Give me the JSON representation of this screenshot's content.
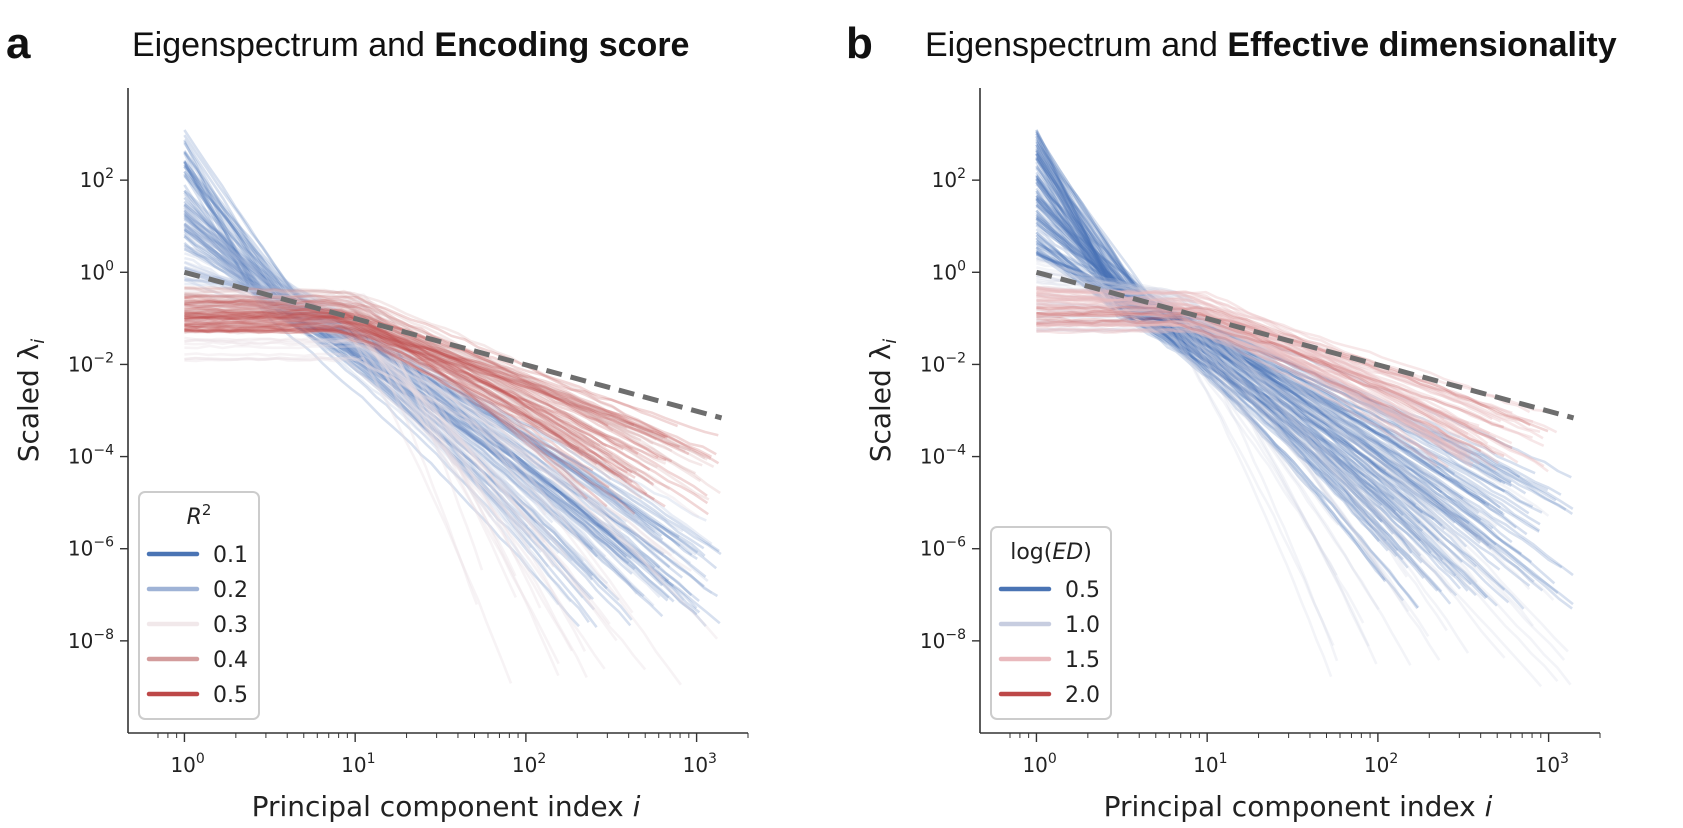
{
  "chart_data": [
    {
      "type": "line",
      "panel_letter": "a",
      "title_plain": "Eigenspectrum and ",
      "title_bold": "Encoding score",
      "xlabel": "Principal component index",
      "xlabel_var": "i",
      "ylabel": "Scaled λ",
      "ylabel_sub": "i",
      "xscale": "log",
      "yscale": "log",
      "xlim": [
        0.7,
        2000
      ],
      "ylim": [
        1e-10,
        10000.0
      ],
      "x_ticks": [
        {
          "label": "10",
          "exp": "0",
          "value": 1
        },
        {
          "label": "10",
          "exp": "1",
          "value": 10
        },
        {
          "label": "10",
          "exp": "2",
          "value": 100
        },
        {
          "label": "10",
          "exp": "3",
          "value": 1000
        }
      ],
      "y_ticks": [
        {
          "label": "10",
          "exp": "2",
          "value": 100
        },
        {
          "label": "10",
          "exp": "0",
          "value": 1
        },
        {
          "label": "10",
          "exp": "−2",
          "value": 0.01
        },
        {
          "label": "10",
          "exp": "−4",
          "value": 0.0001
        },
        {
          "label": "10",
          "exp": "−6",
          "value": 1e-06
        },
        {
          "label": "10",
          "exp": "−8",
          "value": 1e-08
        }
      ],
      "reference_line": {
        "style": "dashed",
        "color": "#6e6e6e",
        "x": [
          1,
          1400
        ],
        "y": [
          1.0,
          0.00069
        ]
      },
      "legend": {
        "title": "R",
        "title_sup": "2",
        "placement": "lower-left",
        "entries": [
          {
            "label": "0.1",
            "color": "#4a74b4"
          },
          {
            "label": "0.2",
            "color": "#9fb3d6"
          },
          {
            "label": "0.3",
            "color": "#f1e8ea"
          },
          {
            "label": "0.4",
            "color": "#d39c9c"
          },
          {
            "label": "0.5",
            "color": "#bd4848"
          }
        ]
      },
      "series_groups": [
        {
          "color": "#4a74b4",
          "count": 55,
          "y_start": [
            3,
            1200
          ],
          "kink_x": 3.5,
          "y_end": [
            2e-08,
            2e-06
          ],
          "x_end": [
            200,
            1400
          ]
        },
        {
          "color": "#9fb3d6",
          "count": 40,
          "y_start": [
            0.5,
            50
          ],
          "kink_x": 4,
          "y_end": [
            5e-08,
            5e-06
          ],
          "x_end": [
            100,
            1400
          ]
        },
        {
          "color": "#e9dde2",
          "count": 30,
          "y_start": [
            0.01,
            0.4
          ],
          "kink_x": 10,
          "y_end": [
            1e-09,
            1e-05
          ],
          "x_end": [
            50,
            1400
          ]
        },
        {
          "color": "#d39c9c",
          "count": 45,
          "y_start": [
            0.05,
            0.5
          ],
          "kink_x": 8,
          "y_end": [
            1e-05,
            0.0005
          ],
          "x_end": [
            200,
            1400
          ]
        },
        {
          "color": "#bd4848",
          "count": 35,
          "y_start": [
            0.05,
            0.3
          ],
          "kink_x": 8,
          "y_end": [
            5e-06,
            0.0005
          ],
          "x_end": [
            200,
            1400
          ]
        }
      ]
    },
    {
      "type": "line",
      "panel_letter": "b",
      "title_plain": "Eigenspectrum and ",
      "title_bold": "Effective dimensionality",
      "xlabel": "Principal component index",
      "xlabel_var": "i",
      "ylabel": "Scaled λ",
      "ylabel_sub": "i",
      "xscale": "log",
      "yscale": "log",
      "xlim": [
        0.7,
        2000
      ],
      "ylim": [
        1e-10,
        10000.0
      ],
      "x_ticks": [
        {
          "label": "10",
          "exp": "0",
          "value": 1
        },
        {
          "label": "10",
          "exp": "1",
          "value": 10
        },
        {
          "label": "10",
          "exp": "2",
          "value": 100
        },
        {
          "label": "10",
          "exp": "3",
          "value": 1000
        }
      ],
      "y_ticks": [
        {
          "label": "10",
          "exp": "2",
          "value": 100
        },
        {
          "label": "10",
          "exp": "0",
          "value": 1
        },
        {
          "label": "10",
          "exp": "−2",
          "value": 0.01
        },
        {
          "label": "10",
          "exp": "−4",
          "value": 0.0001
        },
        {
          "label": "10",
          "exp": "−6",
          "value": 1e-06
        },
        {
          "label": "10",
          "exp": "−8",
          "value": 1e-08
        }
      ],
      "reference_line": {
        "style": "dashed",
        "color": "#6e6e6e",
        "x": [
          1,
          1400
        ],
        "y": [
          1.0,
          0.00069
        ]
      },
      "legend": {
        "title": "log(ED)",
        "title_sup": "",
        "placement": "lower-left",
        "entries": [
          {
            "label": "0.5",
            "color": "#4a74b4"
          },
          {
            "label": "1.0",
            "color": "#c7cde0"
          },
          {
            "label": "1.5",
            "color": "#e9b9bd"
          },
          {
            "label": "2.0",
            "color": "#bd4848"
          }
        ]
      },
      "series_groups": [
        {
          "color": "#4a74b4",
          "count": 110,
          "y_start": [
            2,
            1500
          ],
          "kink_x": 3.5,
          "y_end": [
            5e-08,
            5e-05
          ],
          "x_end": [
            100,
            1400
          ]
        },
        {
          "color": "#c7cde0",
          "count": 35,
          "y_start": [
            0.05,
            2
          ],
          "kink_x": 6,
          "y_end": [
            1e-09,
            1e-05
          ],
          "x_end": [
            50,
            1400
          ]
        },
        {
          "color": "#e9b9bd",
          "count": 45,
          "y_start": [
            0.05,
            0.5
          ],
          "kink_x": 8,
          "y_end": [
            5e-05,
            0.001
          ],
          "x_end": [
            200,
            1400
          ]
        },
        {
          "color": "#bd4848",
          "count": 6,
          "y_start": [
            0.05,
            0.2
          ],
          "kink_x": 8,
          "y_end": [
            0.0001,
            0.0005
          ],
          "x_end": [
            300,
            1400
          ]
        }
      ]
    }
  ]
}
